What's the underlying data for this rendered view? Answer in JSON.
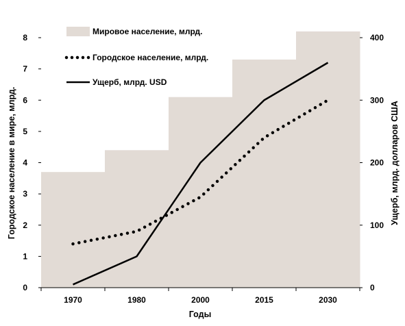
{
  "chart_data": {
    "type": "line",
    "categories": [
      "1970",
      "1980",
      "2000",
      "2015",
      "2030"
    ],
    "xlabel": "Годы",
    "ylabel_left": "Городское население в мире, млрд.",
    "ylabel_right": "Ущерб, млрд. долларов США",
    "ylim_left": [
      0,
      8
    ],
    "yticks_left": [
      "0",
      "1",
      "2",
      "3",
      "4",
      "5",
      "6",
      "7",
      "8"
    ],
    "ylim_right": [
      0,
      400
    ],
    "yticks_right": [
      "0",
      "100",
      "200",
      "300",
      "400"
    ],
    "grid": false,
    "legend_position": "top-left",
    "colors": {
      "area": "#e2dbd5",
      "line": "#000000"
    },
    "series": [
      {
        "name": "Мировое население, млрд.",
        "kind": "step-area",
        "axis": "left",
        "values": [
          3.7,
          4.4,
          6.1,
          7.3,
          8.2
        ]
      },
      {
        "name": "Городское население, млрд.",
        "kind": "dotted-line",
        "axis": "left",
        "values": [
          1.4,
          1.8,
          2.9,
          4.8,
          6.0
        ]
      },
      {
        "name": "Ущерб, млрд. USD",
        "kind": "solid-line",
        "axis": "right",
        "values": [
          5,
          50,
          200,
          300,
          360
        ]
      }
    ]
  }
}
